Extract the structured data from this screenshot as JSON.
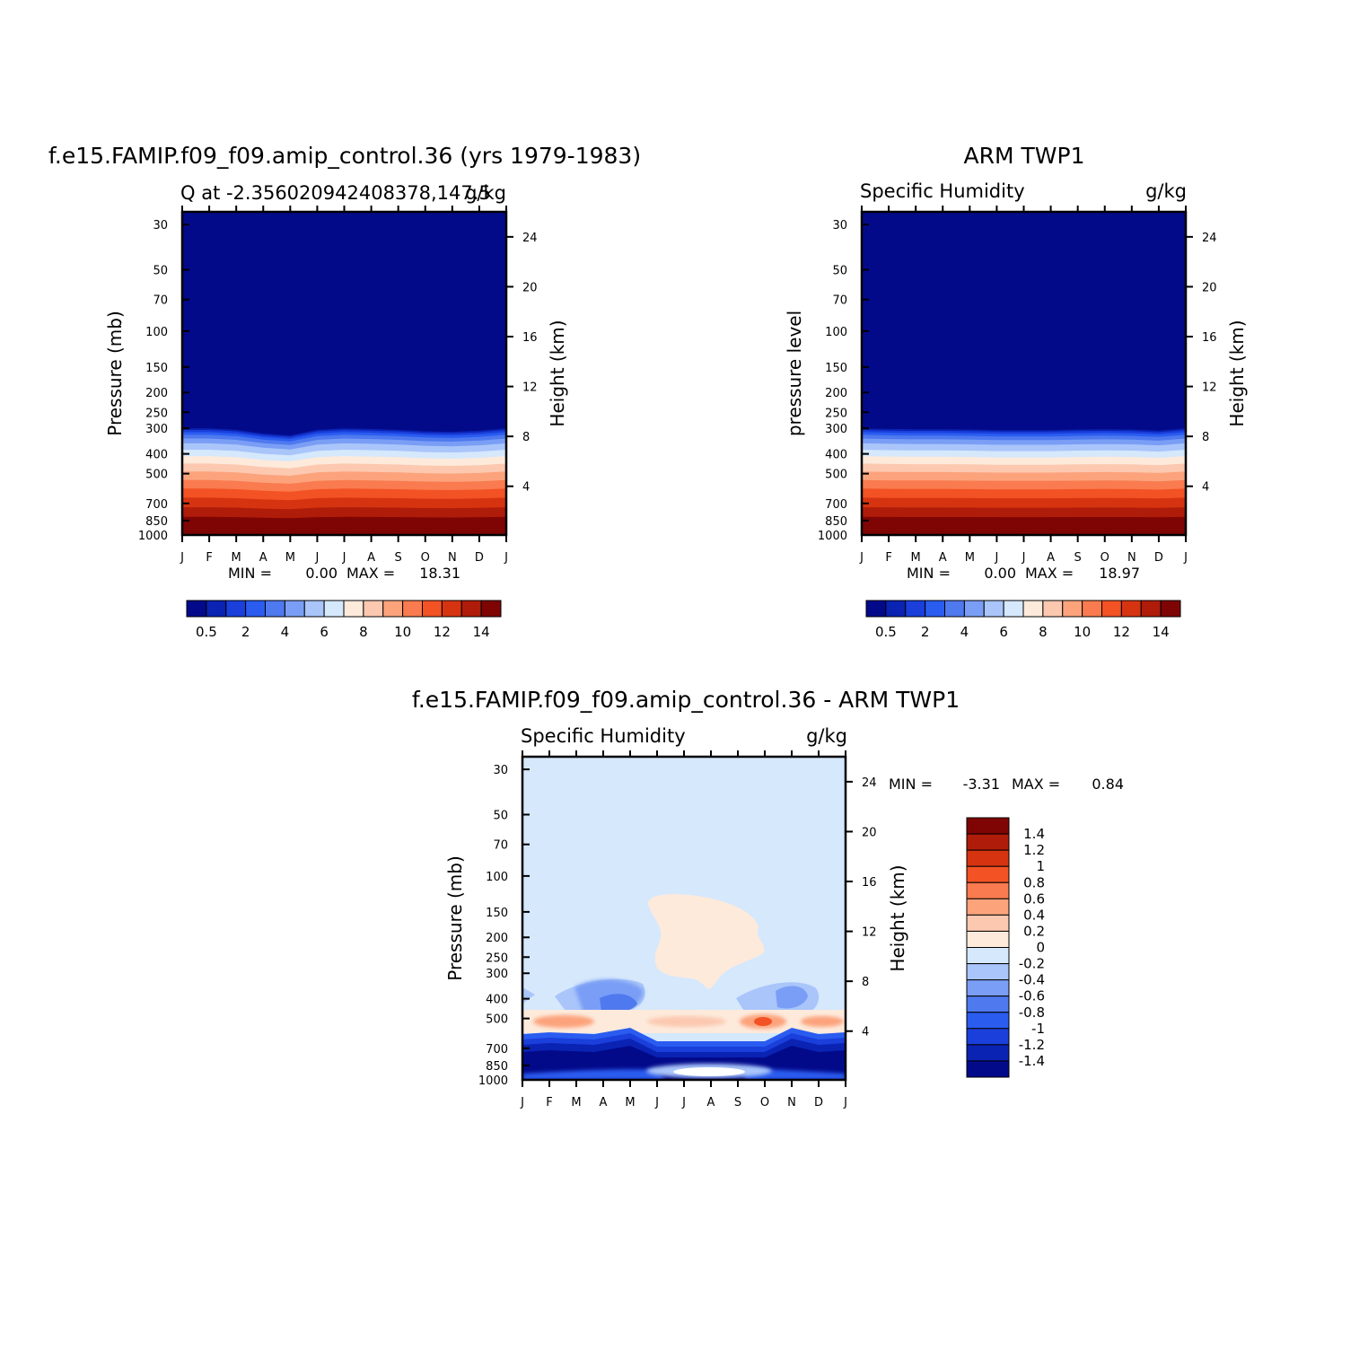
{
  "chart_data": [
    {
      "type": "heatmap",
      "id": "model",
      "title": "f.e15.FAMIP.f09_f09.amip_control.36 (yrs 1979-1983)",
      "subtitle_left": "Q at -2.356020942408378,147.5",
      "subtitle_right": "g/kg",
      "ylabel": "Pressure (mb)",
      "ylabel_right": "Height (km)",
      "x_ticklabels": [
        "J",
        "F",
        "M",
        "A",
        "M",
        "J",
        "J",
        "A",
        "S",
        "O",
        "N",
        "D",
        "J"
      ],
      "y_ticks": [
        30,
        50,
        70,
        100,
        150,
        200,
        250,
        300,
        400,
        500,
        700,
        850,
        1000
      ],
      "y_right_ticks": [
        24,
        20,
        16,
        12,
        8,
        4
      ],
      "ylim": [
        1000,
        26
      ],
      "y_scale": "log",
      "stats": {
        "min_label": "MIN =",
        "min": "0.00",
        "max_label": "MAX =",
        "max": "18.31"
      },
      "months": [
        "Jan",
        "Feb",
        "Mar",
        "Apr",
        "May",
        "Jun",
        "Jul",
        "Aug",
        "Sep",
        "Oct",
        "Nov",
        "Dec",
        "Jan"
      ],
      "moist_top_pressure": [
        300,
        300,
        305,
        318,
        325,
        305,
        300,
        302,
        305,
        310,
        312,
        308,
        300
      ],
      "colorbar": {
        "orientation": "horizontal",
        "levels": [
          0.5,
          1,
          2,
          3,
          4,
          5,
          6,
          7,
          8,
          9,
          10,
          11,
          12,
          13,
          14
        ],
        "tick_labels": [
          "0.5",
          "2",
          "4",
          "6",
          "8",
          "10",
          "12",
          "14"
        ]
      }
    },
    {
      "type": "heatmap",
      "id": "obs",
      "title": "ARM TWP1",
      "subtitle_left": "Specific Humidity",
      "subtitle_right": "g/kg",
      "ylabel": "pressure level",
      "ylabel_right": "Height (km)",
      "x_ticklabels": [
        "J",
        "F",
        "M",
        "A",
        "M",
        "J",
        "J",
        "A",
        "S",
        "O",
        "N",
        "D",
        "J"
      ],
      "y_ticks": [
        30,
        50,
        70,
        100,
        150,
        200,
        250,
        300,
        400,
        500,
        700,
        850,
        1000
      ],
      "y_right_ticks": [
        24,
        20,
        16,
        12,
        8,
        4
      ],
      "ylim": [
        1000,
        26
      ],
      "y_scale": "log",
      "stats": {
        "min_label": "MIN =",
        "min": "0.00",
        "max_label": "MAX =",
        "max": "18.97"
      },
      "months": [
        "Jan",
        "Feb",
        "Mar",
        "Apr",
        "May",
        "Jun",
        "Jul",
        "Aug",
        "Sep",
        "Oct",
        "Nov",
        "Dec",
        "Jan"
      ],
      "moist_top_pressure": [
        300,
        302,
        303,
        303,
        304,
        306,
        306,
        306,
        304,
        303,
        304,
        308,
        300
      ],
      "colorbar": {
        "orientation": "horizontal",
        "levels": [
          0.5,
          1,
          2,
          3,
          4,
          5,
          6,
          7,
          8,
          9,
          10,
          11,
          12,
          13,
          14
        ],
        "tick_labels": [
          "0.5",
          "2",
          "4",
          "6",
          "8",
          "10",
          "12",
          "14"
        ]
      }
    },
    {
      "type": "heatmap",
      "id": "diff",
      "title": "f.e15.FAMIP.f09_f09.amip_control.36 - ARM TWP1",
      "subtitle_left": "Specific Humidity",
      "subtitle_right": "g/kg",
      "ylabel": "Pressure (mb)",
      "ylabel_right": "Height (km)",
      "x_ticklabels": [
        "J",
        "F",
        "M",
        "A",
        "M",
        "J",
        "J",
        "A",
        "S",
        "O",
        "N",
        "D",
        "J"
      ],
      "y_ticks": [
        30,
        50,
        70,
        100,
        150,
        200,
        250,
        300,
        400,
        500,
        700,
        850,
        1000
      ],
      "y_right_ticks": [
        24,
        20,
        16,
        12,
        8,
        4
      ],
      "ylim": [
        1000,
        26
      ],
      "y_scale": "log",
      "stats": {
        "min_label": "MIN =",
        "min": "-3.31",
        "max_label": "MAX =",
        "max": "0.84"
      },
      "colorbar": {
        "orientation": "vertical",
        "levels": [
          1.4,
          1.2,
          1,
          0.8,
          0.6,
          0.4,
          0.2,
          0,
          -0.2,
          -0.4,
          -0.6,
          -0.8,
          -1,
          -1.2,
          -1.4
        ],
        "tick_labels": [
          "1.4",
          "1.2",
          "1",
          "0.8",
          "0.6",
          "0.4",
          "0.2",
          "0",
          "-0.2",
          "-0.4",
          "-0.6",
          "-0.8",
          "-1",
          "-1.2",
          "-1.4"
        ]
      },
      "features": [
        {
          "kind": "positive-blob",
          "value": 0.1,
          "pressure_range": [
            150,
            360
          ],
          "months": "May-Oct"
        },
        {
          "kind": "positive-band",
          "value": 0.4,
          "pressure": 520
        },
        {
          "kind": "positive-peak",
          "value": 0.84,
          "pressure": 520,
          "month": "Oct"
        },
        {
          "kind": "negative-patch",
          "value": -0.7,
          "pressure": 400,
          "month": "Apr"
        },
        {
          "kind": "strong-negative-layer",
          "value": -1.4,
          "pressure_range": [
            750,
            1000
          ]
        }
      ]
    }
  ],
  "colors": {
    "ramp_sequential": [
      "#030a8a",
      "#0a23b3",
      "#1a3fdb",
      "#2a5cf0",
      "#4f79ef",
      "#7a9ef5",
      "#a9c5fa",
      "#d5e8fc",
      "#fdeadb",
      "#fcc8b0",
      "#fca37c",
      "#f97b4f",
      "#f25224",
      "#d63411",
      "#b01c0a",
      "#7f0505"
    ],
    "ramp_diverging": [
      "#7f0505",
      "#b01c0a",
      "#d63411",
      "#f25224",
      "#f97b4f",
      "#fca37c",
      "#fcc8b0",
      "#fdeadb",
      "#d5e8fc",
      "#a9c5fa",
      "#7a9ef5",
      "#4f79ef",
      "#2a5cf0",
      "#1a3fdb",
      "#0a23b3",
      "#030a8a"
    ]
  }
}
